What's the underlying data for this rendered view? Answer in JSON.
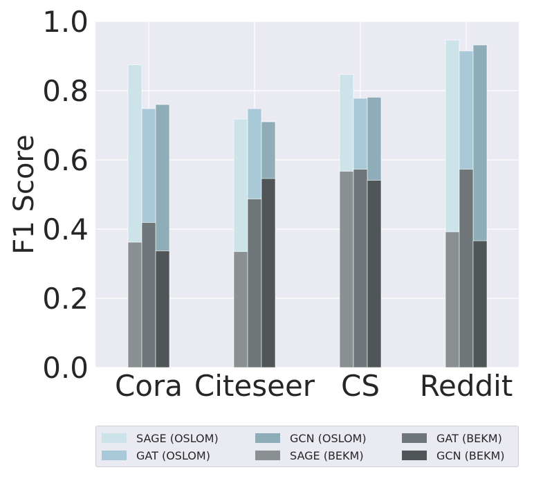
{
  "chart_data": {
    "type": "bar",
    "categories": [
      "Cora",
      "Citeseer",
      "CS",
      "Reddit"
    ],
    "ylabel": "F1 Score",
    "xlabel": "",
    "ylim": [
      0.0,
      1.0
    ],
    "yticks": [
      "0.0",
      "0.2",
      "0.4",
      "0.6",
      "0.8",
      "1.0"
    ],
    "grid": true,
    "layout": "overlay: for each model (SAGE, GAT, GCN) the BEKM bar is drawn in front of the taller OSLOM bar",
    "series": [
      {
        "name": "SAGE (OSLOM)",
        "color": "#cde3ea",
        "values": [
          0.875,
          0.718,
          0.847,
          0.946
        ]
      },
      {
        "name": "GAT (OSLOM)",
        "color": "#a9c9d8",
        "values": [
          0.748,
          0.748,
          0.778,
          0.915
        ]
      },
      {
        "name": "GCN (OSLOM)",
        "color": "#8fadb9",
        "values": [
          0.76,
          0.71,
          0.781,
          0.932
        ]
      },
      {
        "name": "SAGE (BEKM)",
        "color": "#8a8f91",
        "values": [
          0.362,
          0.335,
          0.567,
          0.392
        ]
      },
      {
        "name": "GAT (BEKM)",
        "color": "#6f7679",
        "values": [
          0.419,
          0.487,
          0.573,
          0.573
        ]
      },
      {
        "name": "GCN (BEKM)",
        "color": "#505558",
        "values": [
          0.337,
          0.546,
          0.541,
          0.366
        ]
      }
    ]
  }
}
